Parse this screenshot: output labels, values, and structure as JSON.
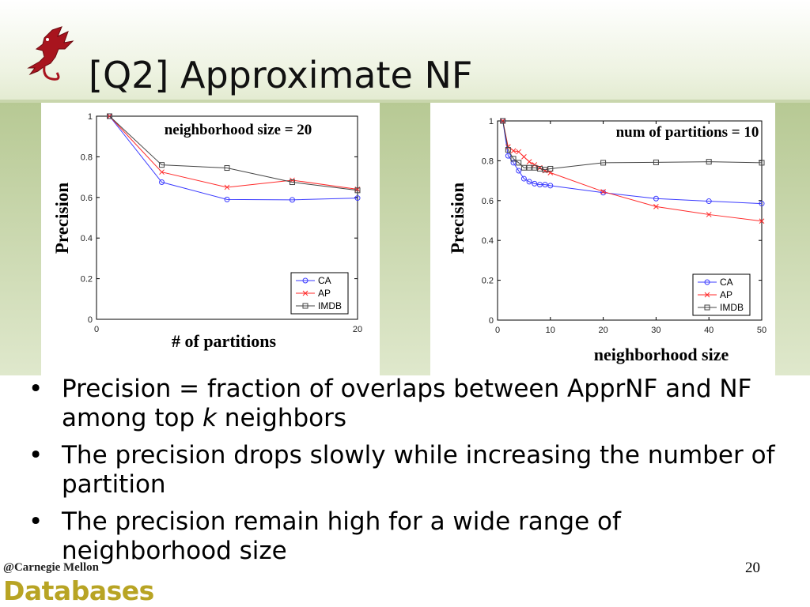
{
  "slide": {
    "title": "[Q2] Approximate NF",
    "page_number": "20",
    "footer_org": "@Carnegie Mellon",
    "footer_brand": "Databases",
    "bullets": [
      {
        "parts": [
          "Precision = fraction of overlaps between ApprNF and NF among top ",
          "k",
          " neighbors"
        ]
      },
      {
        "parts": [
          "The precision drops slowly while increasing the number of partition",
          "",
          ""
        ]
      },
      {
        "parts": [
          "The precision remain high for a wide range of neighborhood size",
          "",
          ""
        ]
      }
    ]
  },
  "colors": {
    "CA": "#3b3bff",
    "AP": "#ff2a2a",
    "IMDB": "#444444"
  },
  "chart_data": [
    {
      "type": "line",
      "annotation": "neighborhood size = 20",
      "xlabel": "# of partitions",
      "ylabel": "Precision",
      "xlim": [
        0,
        20
      ],
      "ylim": [
        0,
        1
      ],
      "xticks": [
        "0",
        "20"
      ],
      "yticks": [
        "0",
        "0.2",
        "0.4",
        "0.6",
        "0.8",
        "1"
      ],
      "legend": "bottom-right",
      "x": [
        1,
        5,
        10,
        15,
        20
      ],
      "series": [
        {
          "name": "CA",
          "marker": "circle",
          "values": [
            1,
            0.675,
            0.59,
            0.588,
            0.597
          ]
        },
        {
          "name": "AP",
          "marker": "x",
          "values": [
            1,
            0.725,
            0.65,
            0.685,
            0.64
          ]
        },
        {
          "name": "IMDB",
          "marker": "square",
          "values": [
            1,
            0.76,
            0.745,
            0.675,
            0.635
          ]
        }
      ]
    },
    {
      "type": "line",
      "annotation": "num of partitions = 10",
      "xlabel": "neighborhood size",
      "ylabel": "Precision",
      "xlim": [
        0,
        50
      ],
      "ylim": [
        0,
        1
      ],
      "xticks": [
        "0",
        "10",
        "20",
        "30",
        "40",
        "50"
      ],
      "yticks": [
        "0",
        "0.2",
        "0.4",
        "0.6",
        "0.8",
        "1"
      ],
      "legend": "bottom-right",
      "x": [
        1,
        2,
        3,
        4,
        5,
        6,
        7,
        8,
        9,
        10,
        20,
        30,
        40,
        50
      ],
      "series": [
        {
          "name": "CA",
          "marker": "circle",
          "values": [
            1,
            0.825,
            0.79,
            0.75,
            0.71,
            0.695,
            0.685,
            0.68,
            0.68,
            0.675,
            0.64,
            0.61,
            0.597,
            0.585
          ]
        },
        {
          "name": "AP",
          "marker": "x",
          "values": [
            1,
            0.87,
            0.85,
            0.845,
            0.82,
            0.795,
            0.78,
            0.765,
            0.75,
            0.74,
            0.645,
            0.57,
            0.53,
            0.497
          ]
        },
        {
          "name": "IMDB",
          "marker": "square",
          "values": [
            1,
            0.855,
            0.81,
            0.79,
            0.765,
            0.765,
            0.765,
            0.76,
            0.755,
            0.76,
            0.79,
            0.792,
            0.795,
            0.79
          ]
        }
      ]
    }
  ]
}
